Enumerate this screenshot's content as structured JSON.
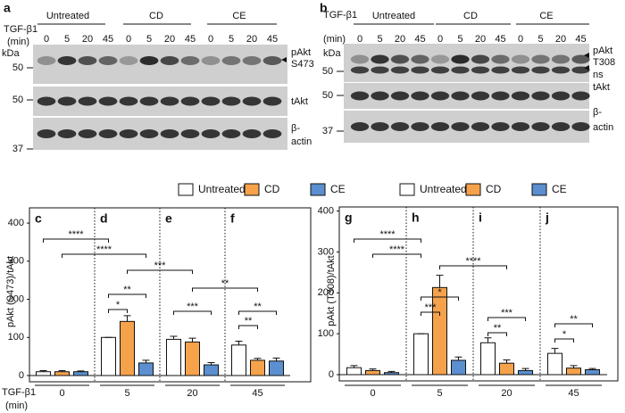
{
  "blots": [
    {
      "letter": "a",
      "stimulus": "TGF-β1",
      "unit": "(min)",
      "groups": [
        "Untreated",
        "CD",
        "CE"
      ],
      "times": [
        "0",
        "5",
        "20",
        "45"
      ],
      "kda": "kDa",
      "markers": [
        "50",
        "50",
        "37"
      ],
      "row_labels": [
        "pAkt",
        "S473",
        "tAkt",
        "β-",
        "actin"
      ]
    },
    {
      "letter": "b",
      "stimulus": "TGF-β1",
      "unit": "(min)",
      "groups": [
        "Untreated",
        "CD",
        "CE"
      ],
      "times": [
        "0",
        "5",
        "20",
        "45"
      ],
      "kda": "kDa",
      "markers": [
        "50",
        "50",
        "37"
      ],
      "row_labels": [
        "pAkt",
        "T308",
        "ns",
        "tAkt",
        "β-",
        "actin"
      ]
    }
  ],
  "chart_data": [
    {
      "type": "bar",
      "panel_letters": [
        "c",
        "d",
        "e",
        "f"
      ],
      "xlabel": "TGF-β1",
      "xlabel_unit": "(min)",
      "ylabel": "pAkt (S473)/tAkt",
      "categories": [
        "0",
        "5",
        "20",
        "45"
      ],
      "ylim": [
        0,
        440
      ],
      "yticks": [
        0,
        100,
        200,
        300,
        400
      ],
      "series": [
        {
          "name": "Untreated",
          "color": "#ffffff",
          "values": [
            10,
            100,
            95,
            80
          ],
          "errors": [
            3,
            0,
            8,
            10
          ]
        },
        {
          "name": "CD",
          "color": "#f5a24b",
          "values": [
            10,
            142,
            88,
            40
          ],
          "errors": [
            3,
            15,
            10,
            5
          ]
        },
        {
          "name": "CE",
          "color": "#5b8fd0",
          "values": [
            10,
            33,
            28,
            38
          ],
          "errors": [
            2,
            7,
            6,
            8
          ]
        }
      ],
      "annotations": [
        {
          "text": "****",
          "from": [
            0,
            0
          ],
          "to": [
            1,
            0
          ]
        },
        {
          "text": "****",
          "from": [
            0,
            1
          ],
          "to": [
            1,
            2
          ]
        },
        {
          "text": "***",
          "from": [
            1,
            1
          ],
          "to": [
            2,
            1
          ]
        },
        {
          "text": "**",
          "from": [
            2,
            1
          ],
          "to": [
            3,
            1
          ]
        },
        {
          "text": "**",
          "from": [
            1,
            0
          ],
          "to": [
            1,
            2
          ]
        },
        {
          "text": "*",
          "from": [
            1,
            0
          ],
          "to": [
            1,
            1
          ]
        },
        {
          "text": "***",
          "from": [
            2,
            0
          ],
          "to": [
            2,
            2
          ]
        },
        {
          "text": "**",
          "from": [
            3,
            0
          ],
          "to": [
            3,
            2
          ]
        },
        {
          "text": "**",
          "from": [
            3,
            0
          ],
          "to": [
            3,
            1
          ]
        }
      ]
    },
    {
      "type": "bar",
      "panel_letters": [
        "g",
        "h",
        "i",
        "j"
      ],
      "ylabel": "pAkt (T308)/tAkt",
      "categories": [
        "0",
        "5",
        "20",
        "45"
      ],
      "ylim": [
        0,
        410
      ],
      "yticks": [
        0,
        100,
        200,
        300,
        400
      ],
      "series": [
        {
          "name": "Untreated",
          "color": "#ffffff",
          "values": [
            17,
            100,
            78,
            52
          ],
          "errors": [
            5,
            0,
            12,
            12
          ]
        },
        {
          "name": "CD",
          "color": "#f5a24b",
          "values": [
            10,
            213,
            28,
            16
          ],
          "errors": [
            4,
            30,
            8,
            6
          ]
        },
        {
          "name": "CE",
          "color": "#5b8fd0",
          "values": [
            5,
            35,
            10,
            12
          ],
          "errors": [
            3,
            8,
            5,
            3
          ]
        }
      ],
      "annotations": [
        {
          "text": "****",
          "from": [
            0,
            0
          ],
          "to": [
            1,
            0
          ]
        },
        {
          "text": "****",
          "from": [
            0,
            1
          ],
          "to": [
            1,
            0
          ]
        },
        {
          "text": "****",
          "from": [
            1,
            1
          ],
          "to": [
            2,
            1
          ]
        },
        {
          "text": "*",
          "from": [
            1,
            0
          ],
          "to": [
            1,
            2
          ]
        },
        {
          "text": "***",
          "from": [
            1,
            0
          ],
          "to": [
            1,
            1
          ]
        },
        {
          "text": "***",
          "from": [
            2,
            0
          ],
          "to": [
            2,
            2
          ]
        },
        {
          "text": "**",
          "from": [
            2,
            0
          ],
          "to": [
            2,
            1
          ]
        },
        {
          "text": "**",
          "from": [
            3,
            0
          ],
          "to": [
            3,
            2
          ]
        },
        {
          "text": "*",
          "from": [
            3,
            0
          ],
          "to": [
            3,
            1
          ]
        }
      ]
    }
  ]
}
